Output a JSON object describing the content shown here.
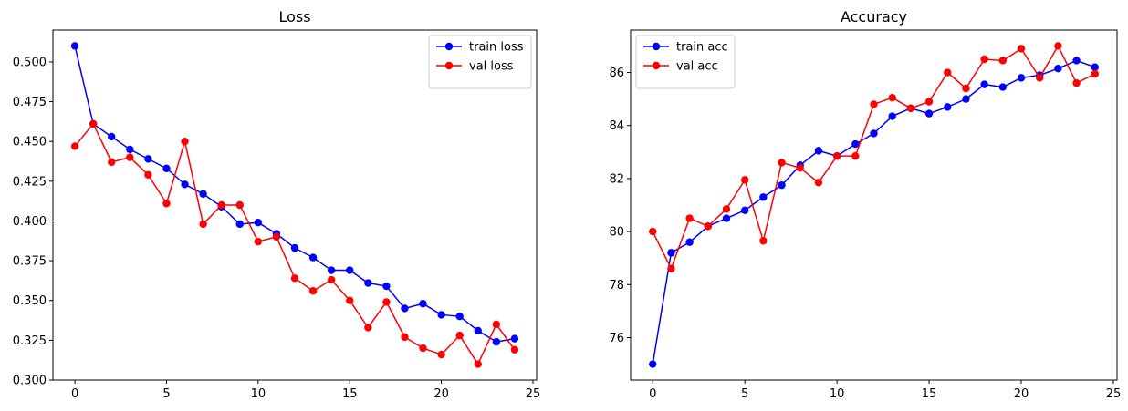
{
  "chart_data": [
    {
      "type": "line",
      "title": "Loss",
      "xlabel": "",
      "ylabel": "",
      "xlim": [
        -1.2,
        25.2
      ],
      "ylim": [
        0.3,
        0.52
      ],
      "xticks": [
        0,
        5,
        10,
        15,
        20,
        25
      ],
      "yticks": [
        0.3,
        0.325,
        0.35,
        0.375,
        0.4,
        0.425,
        0.45,
        0.475,
        0.5
      ],
      "ytick_labels": [
        "0.300",
        "0.325",
        "0.350",
        "0.375",
        "0.400",
        "0.425",
        "0.450",
        "0.475",
        "0.500"
      ],
      "legend": "top-right",
      "grid": false,
      "x": [
        0,
        1,
        2,
        3,
        4,
        5,
        6,
        7,
        8,
        9,
        10,
        11,
        12,
        13,
        14,
        15,
        16,
        17,
        18,
        19,
        20,
        21,
        22,
        23,
        24
      ],
      "series": [
        {
          "name": "train loss",
          "color": "#0000ff",
          "values": [
            0.51,
            0.461,
            0.453,
            0.445,
            0.439,
            0.433,
            0.423,
            0.417,
            0.409,
            0.398,
            0.399,
            0.392,
            0.383,
            0.377,
            0.369,
            0.369,
            0.361,
            0.359,
            0.345,
            0.348,
            0.341,
            0.34,
            0.331,
            0.324,
            0.326
          ]
        },
        {
          "name": "val loss",
          "color": "#ff0000",
          "values": [
            0.447,
            0.461,
            0.437,
            0.44,
            0.429,
            0.411,
            0.45,
            0.398,
            0.41,
            0.41,
            0.387,
            0.39,
            0.364,
            0.356,
            0.363,
            0.35,
            0.333,
            0.349,
            0.327,
            0.32,
            0.316,
            0.328,
            0.31,
            0.335,
            0.319
          ]
        }
      ]
    },
    {
      "type": "line",
      "title": "Accuracy",
      "xlabel": "",
      "ylabel": "",
      "xlim": [
        -1.2,
        25.2
      ],
      "ylim": [
        74.4,
        87.6
      ],
      "xticks": [
        0,
        5,
        10,
        15,
        20,
        25
      ],
      "yticks": [
        76,
        78,
        80,
        82,
        84,
        86
      ],
      "ytick_labels": [
        "76",
        "78",
        "80",
        "82",
        "84",
        "86"
      ],
      "legend": "top-left",
      "grid": false,
      "x": [
        0,
        1,
        2,
        3,
        4,
        5,
        6,
        7,
        8,
        9,
        10,
        11,
        12,
        13,
        14,
        15,
        16,
        17,
        18,
        19,
        20,
        21,
        22,
        23,
        24
      ],
      "series": [
        {
          "name": "train acc",
          "color": "#0000ff",
          "values": [
            75.0,
            79.2,
            79.6,
            80.2,
            80.5,
            80.8,
            81.3,
            81.75,
            82.5,
            83.05,
            82.85,
            83.3,
            83.7,
            84.35,
            84.65,
            84.45,
            84.7,
            85.0,
            85.55,
            85.45,
            85.8,
            85.9,
            86.15,
            86.45,
            86.2
          ]
        },
        {
          "name": "val acc",
          "color": "#ff0000",
          "values": [
            80.0,
            78.6,
            80.5,
            80.2,
            80.85,
            81.95,
            79.65,
            82.6,
            82.4,
            81.85,
            82.85,
            82.85,
            84.8,
            85.05,
            84.65,
            84.9,
            86.0,
            85.4,
            86.5,
            86.45,
            86.9,
            85.8,
            87.0,
            85.6,
            85.95
          ]
        }
      ]
    }
  ]
}
